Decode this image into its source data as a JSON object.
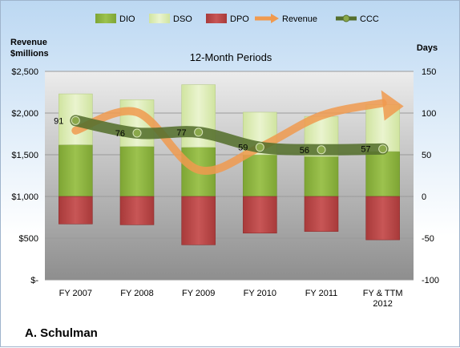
{
  "chart_data": {
    "type": "bar",
    "title": "12-Month Periods",
    "company": "A. Schulman",
    "y_left_label": [
      "Revenue",
      "$millions"
    ],
    "y_right_label": "Days",
    "categories": [
      "FY 2007",
      "FY 2008",
      "FY 2009",
      "FY 2010",
      "FY 2011",
      [
        "FY & TTM",
        "2012"
      ]
    ],
    "y_left": {
      "min": 0,
      "max": 2500,
      "step": 500,
      "tick_labels": [
        "$-",
        "$500",
        "$1,000",
        "$1,500",
        "$2,000",
        "$2,500"
      ]
    },
    "y_right": {
      "min": -100,
      "max": 150,
      "step": 50,
      "tick_labels": [
        "-100",
        "-50",
        "0",
        "50",
        "100",
        "150"
      ]
    },
    "legend": {
      "position": "top",
      "entries": [
        "DIO",
        "DSO",
        "DPO",
        "Revenue",
        "CCC"
      ]
    },
    "series": [
      {
        "name": "DIO",
        "axis": "right",
        "color": "#8db33f",
        "values": [
          62,
          60,
          59,
          50,
          48,
          54
        ]
      },
      {
        "name": "DSO",
        "axis": "right",
        "color": "#dcebb4",
        "values": [
          61,
          56,
          75,
          51,
          48,
          56
        ]
      },
      {
        "name": "DPO",
        "axis": "right",
        "color": "#b84444",
        "values": [
          -33,
          -34,
          -58,
          -44,
          -42,
          -52
        ]
      },
      {
        "name": "Revenue",
        "axis": "left",
        "color": "#f09a4f",
        "values": [
          1790,
          2010,
          1320,
          1590,
          1970,
          2120
        ]
      },
      {
        "name": "CCC",
        "axis": "right",
        "color": "#556f2e",
        "values": [
          91,
          76,
          77,
          59,
          56,
          57
        ],
        "data_labels": [
          "91",
          "76",
          "77",
          "59",
          "56",
          "57"
        ]
      }
    ]
  }
}
